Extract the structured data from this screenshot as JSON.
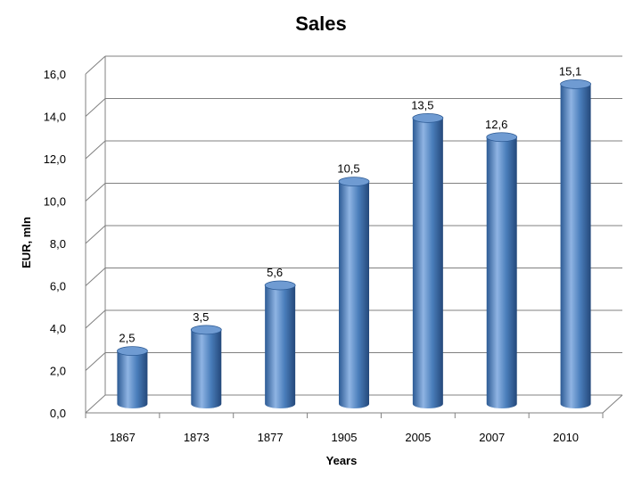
{
  "chart_data": {
    "type": "bar",
    "title": "Sales",
    "xlabel": "Years",
    "ylabel": "EUR, mln",
    "categories": [
      "1867",
      "1873",
      "1877",
      "1905",
      "2005",
      "2007",
      "2010"
    ],
    "values": [
      2.5,
      3.5,
      5.6,
      10.5,
      13.5,
      12.6,
      15.1
    ],
    "value_labels": [
      "2,5",
      "3,5",
      "5,6",
      "10,5",
      "13,5",
      "12,6",
      "15,1"
    ],
    "yticks": [
      "0,0",
      "2,0",
      "4,0",
      "6,0",
      "8,0",
      "10,0",
      "12,0",
      "14,0",
      "16,0"
    ],
    "ylim": [
      0,
      16
    ],
    "grid": true,
    "legend": "none",
    "colors": {
      "bar": "#4a7ebb",
      "bar_dark": "#2c5a94",
      "bar_light": "#8fb4e3",
      "bar_top": "#6f9bd2",
      "grid": "#808080",
      "text": "#000000"
    }
  }
}
